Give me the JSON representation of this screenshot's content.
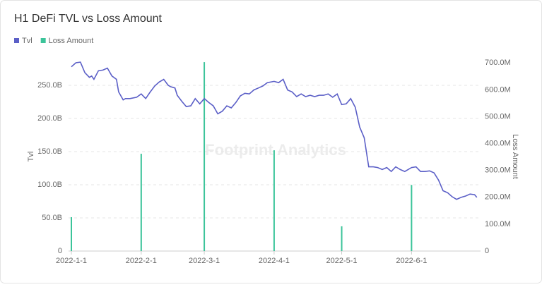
{
  "chart_data": {
    "type": "line-bar",
    "title": "H1 DeFi TVL vs Loss Amount",
    "watermark": "Footprint Analytics",
    "ylabel": "Tvl",
    "y2label": "Loss Amount",
    "legend": "top-left",
    "grid": true,
    "xlim": [
      "2022-1-1",
      "2022-7-1"
    ],
    "xticks": [
      "2022-1-1",
      "2022-2-1",
      "2022-3-1",
      "2022-4-1",
      "2022-5-1",
      "2022-6-1"
    ],
    "ylim": [
      0,
      300
    ],
    "yticks": [
      0,
      {
        "value": 50,
        "label": "50.0B"
      },
      {
        "value": 100,
        "label": "100.0B"
      },
      {
        "value": 150,
        "label": "150.0B"
      },
      {
        "value": 200,
        "label": "200.0B"
      },
      {
        "value": 250,
        "label": "250.0B"
      }
    ],
    "y2lim": [
      0,
      740
    ],
    "y2ticks": [
      0,
      {
        "value": 100,
        "label": "100.0M"
      },
      {
        "value": 200,
        "label": "200.0M"
      },
      {
        "value": 300,
        "label": "300.0M"
      },
      {
        "value": 400,
        "label": "400.0M"
      },
      {
        "value": 500,
        "label": "500.0M"
      },
      {
        "value": 600,
        "label": "600.0M"
      },
      {
        "value": 700,
        "label": "700.0M"
      }
    ],
    "series": [
      {
        "name": "Tvl",
        "type": "line",
        "color": "#5b5fc7",
        "x": [
          "2022-1-1",
          "2022-1-3",
          "2022-1-5",
          "2022-1-7",
          "2022-1-9",
          "2022-1-10",
          "2022-1-11",
          "2022-1-13",
          "2022-1-15",
          "2022-1-17",
          "2022-1-19",
          "2022-1-21",
          "2022-1-22",
          "2022-1-24",
          "2022-1-25",
          "2022-1-27",
          "2022-1-30",
          "2022-2-1",
          "2022-2-3",
          "2022-2-5",
          "2022-2-7",
          "2022-2-9",
          "2022-2-11",
          "2022-2-13",
          "2022-2-14",
          "2022-2-16",
          "2022-2-17",
          "2022-2-19",
          "2022-2-21",
          "2022-2-23",
          "2022-2-25",
          "2022-2-27",
          "2022-3-1",
          "2022-3-3",
          "2022-3-5",
          "2022-3-7",
          "2022-3-9",
          "2022-3-11",
          "2022-3-13",
          "2022-3-15",
          "2022-3-17",
          "2022-3-19",
          "2022-3-21",
          "2022-3-23",
          "2022-3-25",
          "2022-3-27",
          "2022-3-29",
          "2022-4-1",
          "2022-4-3",
          "2022-4-5",
          "2022-4-7",
          "2022-4-9",
          "2022-4-11",
          "2022-4-13",
          "2022-4-15",
          "2022-4-17",
          "2022-4-19",
          "2022-4-21",
          "2022-4-23",
          "2022-4-25",
          "2022-4-27",
          "2022-4-29",
          "2022-5-1",
          "2022-5-3",
          "2022-5-5",
          "2022-5-7",
          "2022-5-9",
          "2022-5-11",
          "2022-5-13",
          "2022-5-15",
          "2022-5-17",
          "2022-5-19",
          "2022-5-21",
          "2022-5-23",
          "2022-5-25",
          "2022-5-27",
          "2022-5-29",
          "2022-6-1",
          "2022-6-3",
          "2022-6-5",
          "2022-6-7",
          "2022-6-9",
          "2022-6-11",
          "2022-6-13",
          "2022-6-15",
          "2022-6-17",
          "2022-6-19",
          "2022-6-21",
          "2022-6-23",
          "2022-6-25",
          "2022-6-27",
          "2022-6-29",
          "2022-6-30"
        ],
        "values": [
          278,
          284,
          285,
          269,
          262,
          264,
          259,
          272,
          273,
          276,
          264,
          259,
          240,
          228,
          230,
          230,
          232,
          237,
          230,
          240,
          249,
          255,
          259,
          250,
          248,
          246,
          235,
          226,
          218,
          219,
          230,
          222,
          230,
          224,
          219,
          207,
          211,
          219,
          216,
          224,
          234,
          238,
          237,
          243,
          246,
          249,
          254,
          256,
          254,
          259,
          243,
          240,
          233,
          237,
          233,
          235,
          233,
          235,
          235,
          237,
          232,
          237,
          221,
          222,
          230,
          217,
          187,
          171,
          127,
          127,
          126,
          123,
          126,
          120,
          127,
          123,
          120,
          126,
          127,
          120,
          120,
          121,
          118,
          107,
          91,
          88,
          82,
          78,
          81,
          83,
          86,
          85,
          81
        ]
      },
      {
        "name": "Loss Amount",
        "type": "bar",
        "axis": "y2",
        "color": "#3cc49a",
        "x": [
          "2022-1-1",
          "2022-2-1",
          "2022-3-1",
          "2022-4-1",
          "2022-5-1",
          "2022-6-1"
        ],
        "values": [
          126,
          362,
          703,
          375,
          92,
          246
        ]
      }
    ]
  }
}
